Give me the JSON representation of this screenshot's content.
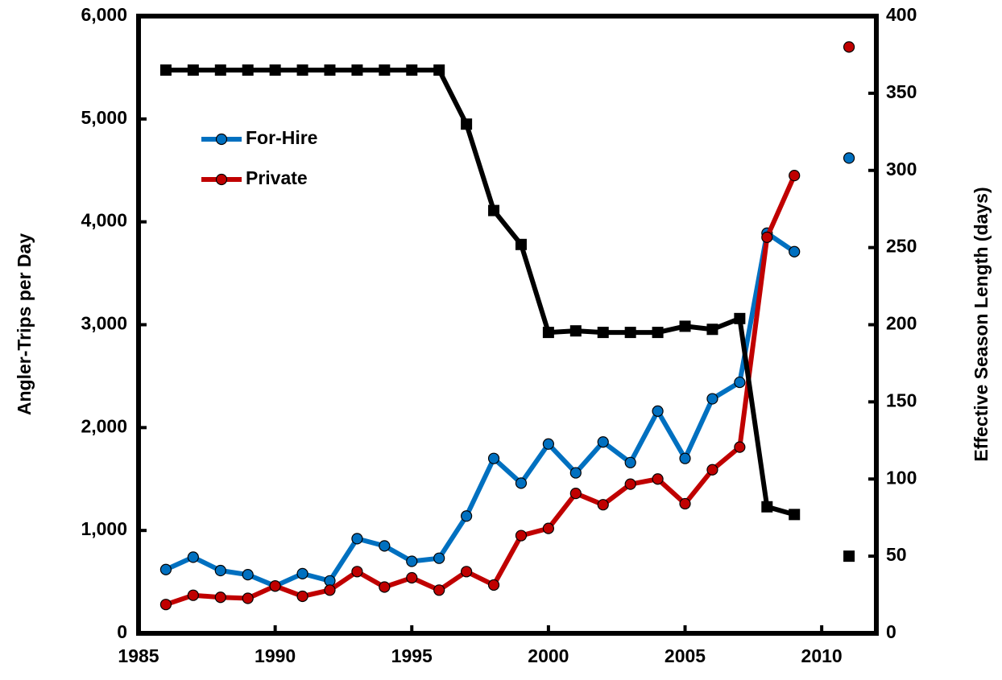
{
  "chart_data": {
    "type": "line",
    "x": [
      1986,
      1987,
      1988,
      1989,
      1990,
      1991,
      1992,
      1993,
      1994,
      1995,
      1996,
      1997,
      1998,
      1999,
      2000,
      2001,
      2002,
      2003,
      2004,
      2005,
      2006,
      2007,
      2008,
      2009,
      2010,
      2011
    ],
    "series": [
      {
        "name": "For-Hire",
        "color": "#0070c0",
        "values": [
          620,
          740,
          610,
          570,
          460,
          580,
          510,
          920,
          850,
          700,
          730,
          1140,
          1700,
          1460,
          1840,
          1560,
          1860,
          1660,
          2160,
          1700,
          2280,
          2440,
          3890,
          3710,
          null,
          4620
        ]
      },
      {
        "name": "Private",
        "color": "#c00000",
        "values": [
          280,
          370,
          350,
          340,
          460,
          360,
          420,
          600,
          450,
          540,
          420,
          600,
          470,
          950,
          1020,
          1360,
          1250,
          1450,
          1500,
          1260,
          1590,
          1810,
          3850,
          4450,
          null,
          5700
        ]
      },
      {
        "color": "#000000",
        "axis": "y2",
        "values": [
          365,
          365,
          365,
          365,
          365,
          365,
          365,
          365,
          365,
          365,
          365,
          330,
          274,
          252,
          195,
          196,
          195,
          195,
          195,
          199,
          197,
          204,
          82,
          77,
          null,
          50
        ]
      }
    ],
    "xlim": [
      1985,
      2012
    ],
    "xticks": [
      1985,
      1990,
      1995,
      2000,
      2005,
      2010
    ],
    "ylim": [
      0,
      6000
    ],
    "yticks": [
      0,
      {
        "value": 1000,
        "label": "1,000"
      },
      {
        "value": 2000,
        "label": "2,000"
      },
      {
        "value": 3000,
        "label": "3,000"
      },
      {
        "value": 4000,
        "label": "4,000"
      },
      {
        "value": 5000,
        "label": "5,000"
      },
      {
        "value": 6000,
        "label": "6,000"
      }
    ],
    "y2lim": [
      0,
      400
    ],
    "y2ticks": [
      0,
      50,
      100,
      150,
      200,
      250,
      300,
      350,
      400
    ],
    "ylabel": "Angler-Trips per Day",
    "y2label": "Effective Season Length (days)"
  }
}
